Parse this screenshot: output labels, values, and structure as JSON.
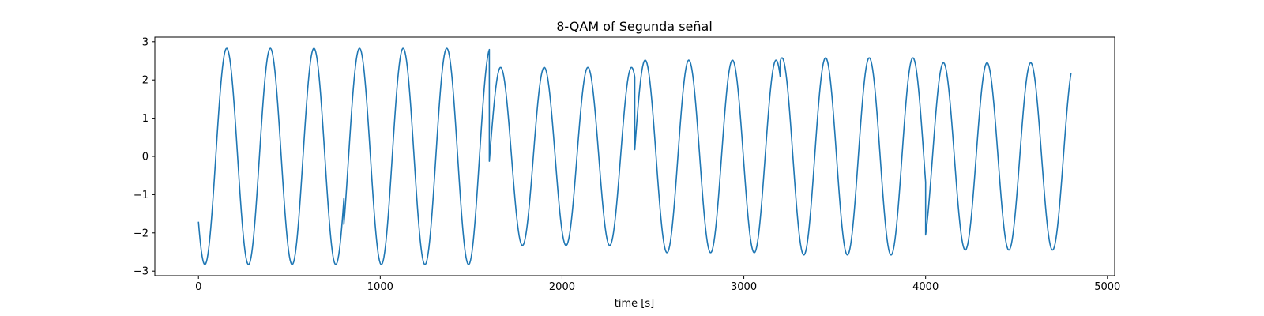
{
  "chart_data": {
    "type": "line",
    "title": "8-QAM of Segunda señal",
    "xlabel": "time [s]",
    "ylabel": "",
    "xlim": [
      -240,
      5040
    ],
    "ylim": [
      -3.12,
      3.12
    ],
    "grid": false,
    "legend": "none",
    "xticks": [
      0,
      1000,
      2000,
      3000,
      4000,
      5000
    ],
    "xtick_labels": [
      "0",
      "1000",
      "2000",
      "3000",
      "4000",
      "5000"
    ],
    "yticks": [
      -3,
      -2,
      -1,
      0,
      1,
      2,
      3
    ],
    "ytick_labels": [
      "−3",
      "−2",
      "−1",
      "0",
      "1",
      "2",
      "3"
    ],
    "sample_step": 4,
    "line_color": "#1f77b4",
    "series": [
      {
        "segments": [
          {
            "x_start": 0,
            "x_end": 800,
            "amplitude": 2.83,
            "period": 240,
            "phase": 3.79
          },
          {
            "x_start": 800,
            "x_end": 1600,
            "amplitude": 2.83,
            "period": 240,
            "phase": 3.51
          },
          {
            "x_start": 1600,
            "x_end": 2400,
            "amplitude": 2.33,
            "period": 240,
            "phase": 2.04
          },
          {
            "x_start": 2400,
            "x_end": 3200,
            "amplitude": 2.52,
            "period": 240,
            "phase": 0.07
          },
          {
            "x_start": 3200,
            "x_end": 4000,
            "amplitude": 2.58,
            "period": 240,
            "phase": 5.5
          },
          {
            "x_start": 4000,
            "x_end": 4800,
            "amplitude": 2.45,
            "period": 240,
            "phase": 1.1
          }
        ]
      }
    ]
  }
}
